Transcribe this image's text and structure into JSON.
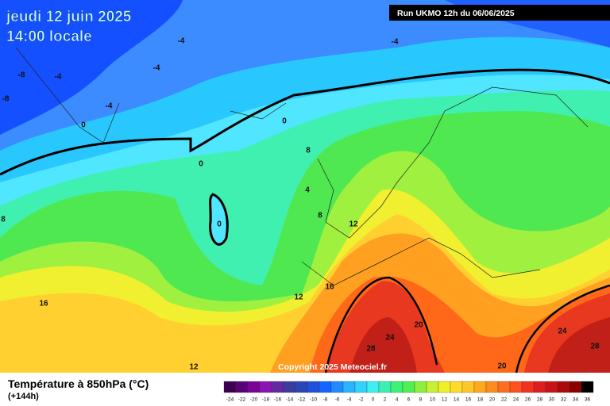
{
  "header": {
    "date": "jeudi 12 juin 2025",
    "time": "14:00 locale",
    "run": "Run UKMO 12h du 06/06/2025"
  },
  "map": {
    "copyright": "Copyright 2025 Meteociel.fr",
    "contour_labels": [
      -4,
      -4,
      -8,
      -4,
      -4,
      -8,
      -4,
      0,
      0,
      0,
      8,
      4,
      8,
      12,
      0,
      8,
      16,
      12,
      16,
      20,
      24,
      28,
      24,
      28,
      20,
      12
    ]
  },
  "footer": {
    "title": "Température à 850hPa (°C)",
    "lead": "(+144h)"
  },
  "scale": {
    "labels": [
      -24,
      -22,
      -20,
      -18,
      -16,
      -14,
      -12,
      -10,
      -8,
      -6,
      -4,
      -2,
      0,
      2,
      4,
      6,
      8,
      10,
      12,
      14,
      16,
      18,
      20,
      22,
      24,
      26,
      28,
      30,
      32,
      34,
      36
    ],
    "colors": [
      "#3c0050",
      "#5a0078",
      "#7a0096",
      "#8c14b4",
      "#6428a0",
      "#3c3ca0",
      "#2846b4",
      "#1e50dc",
      "#1464ff",
      "#1e8cff",
      "#28b4ff",
      "#32d2ff",
      "#3cf0f0",
      "#3cf0b4",
      "#3cf078",
      "#50f050",
      "#8cf03c",
      "#c8f032",
      "#f0f028",
      "#ffdc28",
      "#ffc828",
      "#ffaa1e",
      "#ff8c1e",
      "#ff6e1e",
      "#ff501e",
      "#f0321e",
      "#dc1e1e",
      "#c81414",
      "#aa0a0a",
      "#8c0000",
      "#000000"
    ]
  }
}
